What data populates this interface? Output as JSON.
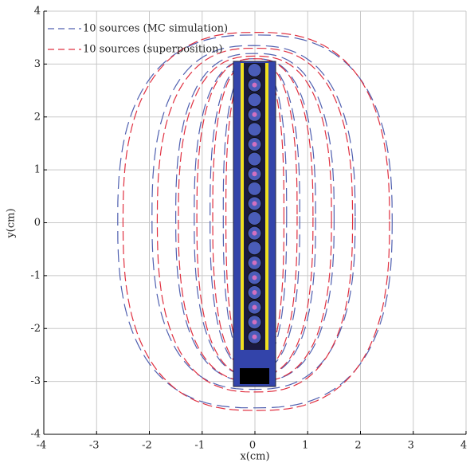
{
  "chart_data": {
    "type": "contour",
    "xlabel": "x(cm)",
    "ylabel": "y(cm)",
    "xlim": [
      -4,
      4
    ],
    "ylim": [
      -4,
      4
    ],
    "xticks": [
      -4,
      -3,
      -2,
      -1,
      0,
      1,
      2,
      3,
      4
    ],
    "yticks": [
      -4,
      -3,
      -2,
      -1,
      0,
      1,
      2,
      3,
      4
    ],
    "grid": true,
    "legend": "upper left",
    "series": [
      {
        "name": "10 sources (MC simulation)",
        "color": "#5060b0",
        "contours": [
          {
            "x": [
              -2.6,
              2.6
            ],
            "y": [
              -3.5,
              3.55
            ]
          },
          {
            "x": [
              -1.95,
              1.9
            ],
            "y": [
              -3.15,
              3.35
            ]
          },
          {
            "x": [
              -1.5,
              1.5
            ],
            "y": [
              -3.0,
              3.2
            ]
          },
          {
            "x": [
              -1.15,
              1.15
            ],
            "y": [
              -2.9,
              3.1
            ]
          },
          {
            "x": [
              -0.85,
              0.85
            ],
            "y": [
              -2.8,
              3.05
            ]
          },
          {
            "x": [
              -0.6,
              0.6
            ],
            "y": [
              -2.7,
              3.0
            ]
          }
        ]
      },
      {
        "name": "10 sources (superposition)",
        "color": "#e03040",
        "contours": [
          {
            "x": [
              -2.5,
              2.55
            ],
            "y": [
              -3.55,
              3.6
            ]
          },
          {
            "x": [
              -1.85,
              1.85
            ],
            "y": [
              -3.2,
              3.3
            ]
          },
          {
            "x": [
              -1.45,
              1.45
            ],
            "y": [
              -3.0,
              3.15
            ]
          },
          {
            "x": [
              -1.1,
              1.1
            ],
            "y": [
              -2.9,
              3.1
            ]
          },
          {
            "x": [
              -0.8,
              0.8
            ],
            "y": [
              -2.8,
              3.05
            ]
          },
          {
            "x": [
              -0.55,
              0.55
            ],
            "y": [
              -2.7,
              3.0
            ]
          }
        ]
      }
    ]
  }
}
